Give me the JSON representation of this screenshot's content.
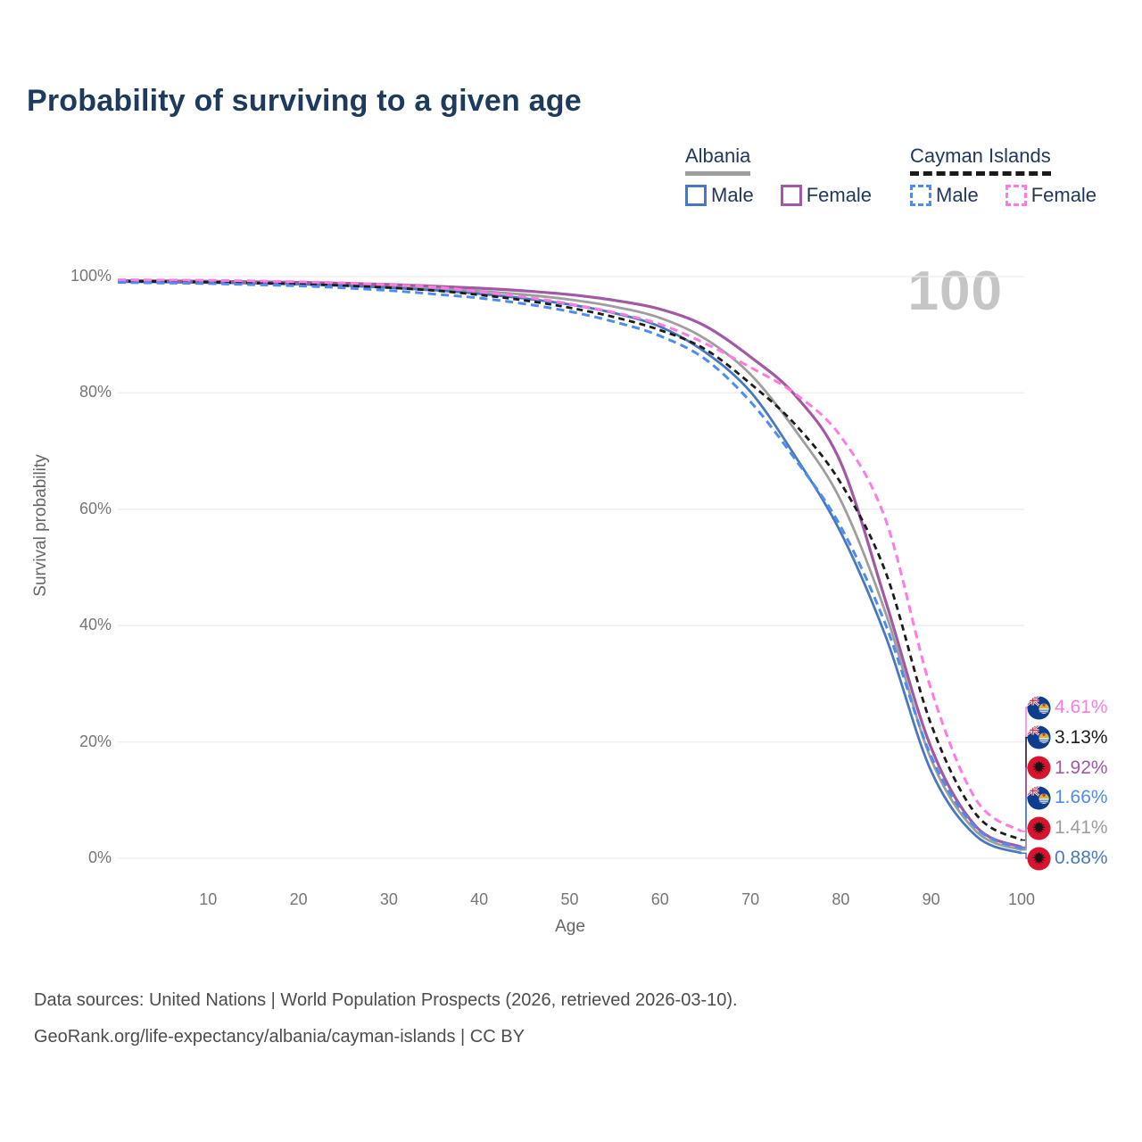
{
  "title": "Probability of surviving to a given age",
  "watermark_age": "100",
  "legend": {
    "groups": [
      {
        "country": "Albania",
        "line_style": "solid",
        "underline_color": "#9e9e9e",
        "items": [
          {
            "label": "Male",
            "color": "#4a78be"
          },
          {
            "label": "Female",
            "color": "#a159a3"
          }
        ]
      },
      {
        "country": "Cayman Islands",
        "line_style": "dashed",
        "underline_color": "#1a1a1a",
        "items": [
          {
            "label": "Male",
            "color": "#4e8cf0"
          },
          {
            "label": "Female",
            "color": "#ff7ae1"
          }
        ]
      }
    ]
  },
  "chart_data": {
    "type": "line",
    "title": "Probability of surviving to a given age",
    "xlabel": "Age",
    "ylabel": "Survival probability",
    "xlim": [
      0,
      100
    ],
    "ylim": [
      0,
      100
    ],
    "grid": "horizontal",
    "x_ticks": [
      10,
      20,
      30,
      40,
      50,
      60,
      70,
      80,
      90,
      100
    ],
    "y_ticks": [
      "0%",
      "20%",
      "40%",
      "60%",
      "80%",
      "100%"
    ],
    "x": [
      0,
      5,
      10,
      15,
      20,
      25,
      30,
      35,
      40,
      45,
      50,
      55,
      60,
      65,
      70,
      75,
      80,
      85,
      90,
      95,
      100
    ],
    "series": [
      {
        "name": "Albania Total",
        "country": "Albania",
        "sex": "total",
        "color": "#9e9e9e",
        "dash": "solid",
        "width": 2.8,
        "flag": "albania",
        "end_label": "1.41%",
        "values": [
          99.2,
          99.15,
          99.07,
          98.95,
          98.85,
          98.65,
          98.35,
          98.0,
          97.5,
          96.9,
          96.05,
          94.8,
          92.9,
          89.3,
          83.2,
          73.5,
          61.5,
          42.0,
          17.0,
          4.6,
          1.41
        ]
      },
      {
        "name": "Albania Male",
        "country": "Albania",
        "sex": "male",
        "color": "#4a78be",
        "dash": "solid",
        "width": 2.8,
        "flag": "albania",
        "end_label": "0.88%",
        "values": [
          99.1,
          99.05,
          98.95,
          98.85,
          98.7,
          98.45,
          98.1,
          97.65,
          97.05,
          96.25,
          95.2,
          93.7,
          91.4,
          87.0,
          80.2,
          69.0,
          56.0,
          38.0,
          15.0,
          3.8,
          0.88
        ]
      },
      {
        "name": "Albania Female",
        "country": "Albania",
        "sex": "female",
        "color": "#a159a3",
        "dash": "solid",
        "width": 3.2,
        "flag": "albania",
        "end_label": "1.92%",
        "values": [
          99.3,
          99.25,
          99.2,
          99.1,
          99.0,
          98.85,
          98.65,
          98.35,
          98.0,
          97.55,
          96.9,
          95.9,
          94.4,
          91.5,
          86.2,
          79.5,
          68.0,
          44.0,
          19.0,
          5.4,
          1.92
        ]
      },
      {
        "name": "Cayman Islands Total",
        "country": "Cayman Islands",
        "sex": "total",
        "color": "#1c1c1c",
        "dash": "7 5",
        "width": 2.8,
        "flag": "cayman-islands",
        "end_label": "3.13%",
        "values": [
          99.2,
          99.15,
          99.05,
          98.9,
          98.7,
          98.45,
          98.1,
          97.6,
          96.85,
          95.9,
          94.65,
          93.0,
          90.8,
          87.5,
          81.6,
          74.5,
          64.5,
          49.0,
          23.0,
          7.5,
          3.13
        ]
      },
      {
        "name": "Cayman Islands Male",
        "country": "Cayman Islands",
        "sex": "male",
        "color": "#4e8cf0",
        "dash": "9 5.5",
        "width": 3.0,
        "flag": "cayman-islands",
        "end_label": "1.66%",
        "values": [
          99.0,
          98.9,
          98.8,
          98.6,
          98.4,
          98.05,
          97.6,
          97.0,
          96.3,
          95.3,
          94.0,
          92.2,
          89.8,
          85.8,
          78.5,
          68.5,
          57.0,
          40.0,
          17.5,
          5.2,
          1.66
        ]
      },
      {
        "name": "Cayman Islands Female",
        "country": "Cayman Islands",
        "sex": "female",
        "color": "#ff7ae1",
        "dash": "9 5.5",
        "width": 3.0,
        "flag": "cayman-islands",
        "end_label": "4.61%",
        "values": [
          99.45,
          99.4,
          99.35,
          99.25,
          99.1,
          98.9,
          98.6,
          98.2,
          97.4,
          96.5,
          95.3,
          93.8,
          91.8,
          88.5,
          84.4,
          79.8,
          72.5,
          58.0,
          29.0,
          10.0,
          4.61
        ]
      }
    ],
    "end_label_order": [
      "Cayman Islands Female",
      "Cayman Islands Total",
      "Albania Female",
      "Cayman Islands Male",
      "Albania Total",
      "Albania Male"
    ],
    "legend_position": "top-right"
  },
  "footer": {
    "line1": "Data sources: United Nations | World Population Prospects (2026, retrieved 2026-03-10).",
    "line2": "GeoRank.org/life-expectancy/albania/cayman-islands | CC BY"
  }
}
